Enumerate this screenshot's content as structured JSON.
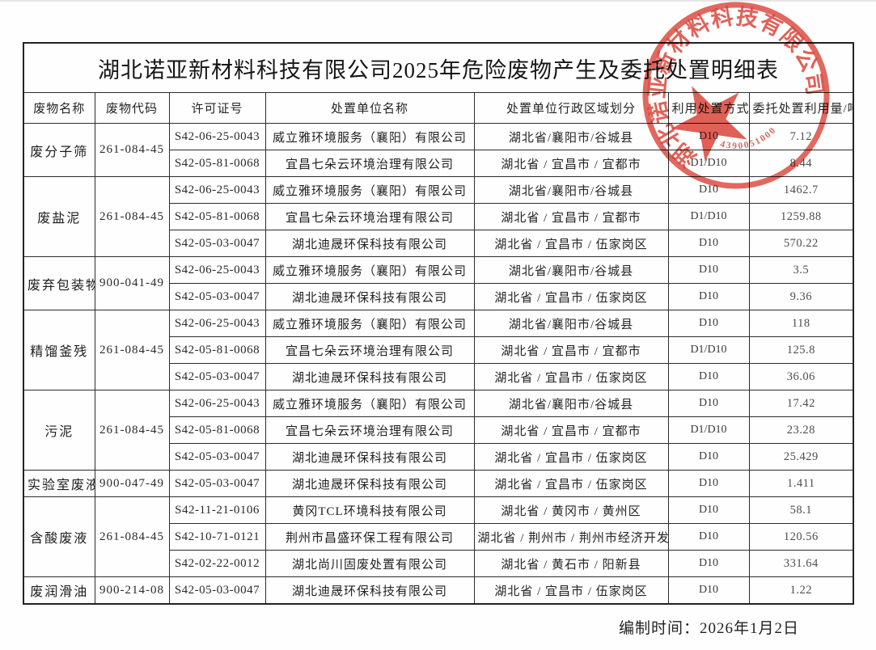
{
  "page": {
    "title": "湖北诺亚新材料科技有限公司2025年危险废物产生及委托处置明细表",
    "footer": "编制时间：2026年1月2日"
  },
  "stamp": {
    "company": "湖北诺亚新材料科技有限公司",
    "serial": "4390051000",
    "color": "#d8362b"
  },
  "table": {
    "headers": [
      "废物名称",
      "废物代码",
      "许可证号",
      "处置单位名称",
      "处置单位行政区域划分",
      "利用处置方式",
      "委托处置利用量/吨"
    ],
    "groups": [
      {
        "waste_name": "废分子筛",
        "waste_code": "261-084-45",
        "rows": [
          {
            "license": "S42-06-25-0043",
            "unit": "威立雅环境服务（襄阳）有限公司",
            "region": "湖北省/襄阳市/谷城县",
            "method": "D10",
            "amount": "7.12"
          },
          {
            "license": "S42-05-81-0068",
            "unit": "宜昌七朵云环境治理有限公司",
            "region": "湖北省 / 宜昌市 / 宜都市",
            "method": "D1/D10",
            "amount": "8.44"
          }
        ]
      },
      {
        "waste_name": "废盐泥",
        "waste_code": "261-084-45",
        "rows": [
          {
            "license": "S42-06-25-0043",
            "unit": "威立雅环境服务（襄阳）有限公司",
            "region": "湖北省/襄阳市/谷城县",
            "method": "D10",
            "amount": "1462.7"
          },
          {
            "license": "S42-05-81-0068",
            "unit": "宜昌七朵云环境治理有限公司",
            "region": "湖北省 / 宜昌市 / 宜都市",
            "method": "D1/D10",
            "amount": "1259.88"
          },
          {
            "license": "S42-05-03-0047",
            "unit": "湖北迪晟环保科技有限公司",
            "region": "湖北省 / 宜昌市 / 伍家岗区",
            "method": "D10",
            "amount": "570.22"
          }
        ]
      },
      {
        "waste_name": "废弃包装物",
        "waste_code": "900-041-49",
        "rows": [
          {
            "license": "S42-06-25-0043",
            "unit": "威立雅环境服务（襄阳）有限公司",
            "region": "湖北省/襄阳市/谷城县",
            "method": "D10",
            "amount": "3.5"
          },
          {
            "license": "S42-05-03-0047",
            "unit": "湖北迪晟环保科技有限公司",
            "region": "湖北省 / 宜昌市 / 伍家岗区",
            "method": "D10",
            "amount": "9.36"
          }
        ]
      },
      {
        "waste_name": "精馏釜残",
        "waste_code": "261-084-45",
        "rows": [
          {
            "license": "S42-06-25-0043",
            "unit": "威立雅环境服务（襄阳）有限公司",
            "region": "湖北省/襄阳市/谷城县",
            "method": "D10",
            "amount": "118"
          },
          {
            "license": "S42-05-81-0068",
            "unit": "宜昌七朵云环境治理有限公司",
            "region": "湖北省 / 宜昌市 / 宜都市",
            "method": "D1/D10",
            "amount": "125.8"
          },
          {
            "license": "S42-05-03-0047",
            "unit": "湖北迪晟环保科技有限公司",
            "region": "湖北省 / 宜昌市 / 伍家岗区",
            "method": "D10",
            "amount": "36.06"
          }
        ]
      },
      {
        "waste_name": "污泥",
        "waste_code": "261-084-45",
        "rows": [
          {
            "license": "S42-06-25-0043",
            "unit": "威立雅环境服务（襄阳）有限公司",
            "region": "湖北省/襄阳市/谷城县",
            "method": "D10",
            "amount": "17.42"
          },
          {
            "license": "S42-05-81-0068",
            "unit": "宜昌七朵云环境治理有限公司",
            "region": "湖北省 / 宜昌市 / 宜都市",
            "method": "D1/D10",
            "amount": "23.28"
          },
          {
            "license": "S42-05-03-0047",
            "unit": "湖北迪晟环保科技有限公司",
            "region": "湖北省 / 宜昌市 / 伍家岗区",
            "method": "D10",
            "amount": "25.429"
          }
        ]
      },
      {
        "waste_name": "实验室废液",
        "waste_code": "900-047-49",
        "rows": [
          {
            "license": "S42-05-03-0047",
            "unit": "湖北迪晟环保科技有限公司",
            "region": "湖北省 / 宜昌市 / 伍家岗区",
            "method": "D10",
            "amount": "1.411"
          }
        ]
      },
      {
        "waste_name": "含酸废液",
        "waste_code": "261-084-45",
        "rows": [
          {
            "license": "S42-11-21-0106",
            "unit": "黄冈TCL环境科技有限公司",
            "region": "湖北省 / 黄冈市 / 黄州区",
            "method": "D10",
            "amount": "58.1"
          },
          {
            "license": "S42-10-71-0121",
            "unit": "荆州市昌盛环保工程有限公司",
            "region": "湖北省 / 荆州市 / 荆州市经济开发区",
            "method": "D10",
            "amount": "120.56"
          },
          {
            "license": "S42-02-22-0012",
            "unit": "湖北尚川固废处置有限公司",
            "region": "湖北省 / 黄石市 / 阳新县",
            "method": "D10",
            "amount": "331.64"
          }
        ]
      },
      {
        "waste_name": "废润滑油",
        "waste_code": "900-214-08",
        "rows": [
          {
            "license": "S42-05-03-0047",
            "unit": "湖北迪晟环保科技有限公司",
            "region": "湖北省 / 宜昌市 / 伍家岗区",
            "method": "D10",
            "amount": "1.22"
          }
        ]
      }
    ]
  }
}
